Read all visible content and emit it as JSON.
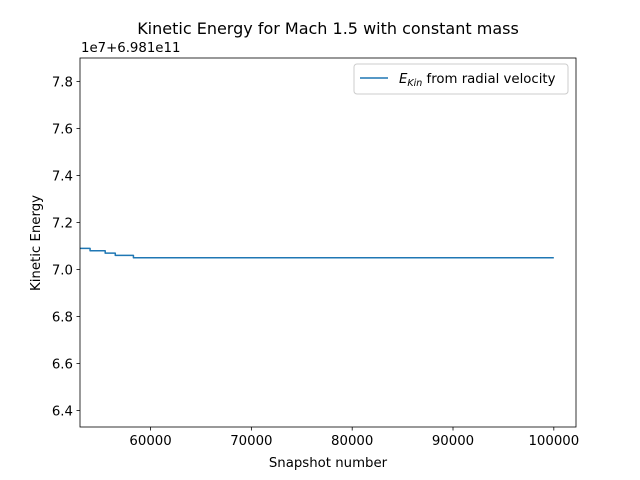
{
  "chart_data": {
    "type": "line",
    "title": "Kinetic Energy for Mach 1.5 with constant mass",
    "xlabel": "Snapshot number",
    "ylabel": "Kinetic Energy",
    "y_offset_text": "1e7+6.981e11",
    "xlim": [
      53000,
      102200
    ],
    "ylim": [
      6.33,
      7.9
    ],
    "xticks": [
      60000,
      70000,
      80000,
      90000,
      100000
    ],
    "xtick_labels": [
      "60000",
      "70000",
      "80000",
      "90000",
      "100000"
    ],
    "yticks": [
      6.4,
      6.6,
      6.8,
      7.0,
      7.2,
      7.4,
      7.6,
      7.8
    ],
    "ytick_labels": [
      "6.4",
      "6.6",
      "6.8",
      "7.0",
      "7.2",
      "7.4",
      "7.6",
      "7.8"
    ],
    "grid": false,
    "legend_position": "top-right",
    "series": [
      {
        "name": "E_Kin from radial velocity",
        "legend_main": "E",
        "legend_sub": "Kin",
        "legend_rest": " from radial velocity",
        "color": "#1f77b4",
        "drawstyle": "steps",
        "x": [
          53000,
          54000,
          54000,
          55500,
          55500,
          56500,
          56500,
          58300,
          58300,
          100000
        ],
        "y": [
          7.09,
          7.09,
          7.08,
          7.08,
          7.07,
          7.07,
          7.06,
          7.06,
          7.05,
          7.05
        ]
      }
    ]
  }
}
